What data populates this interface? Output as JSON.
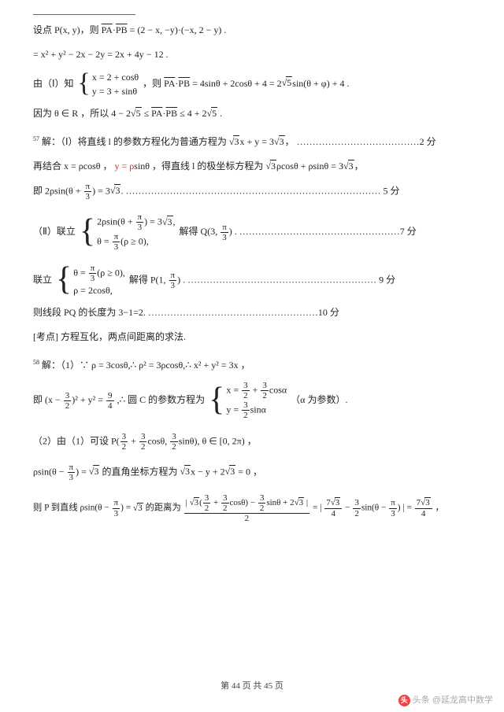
{
  "l1": "设点 P(x, y)，则 ",
  "l1b": " = (2 − x, −y)·(−x, 2 − y) .",
  "l2": "= x² + y² − 2x − 2y = 2x + 4y − 12 .",
  "l3a": "由（Ⅰ）知",
  "l3r1": "x = 2 + cosθ",
  "l3r2": "y = 3 + sinθ",
  "l3b": "，则 ",
  "l3c": " = 4sinθ + 2cosθ + 4 = 2",
  "l3d": "sin(θ + φ) + 4 .",
  "l4a": "因为 θ ∈ R ，所以 4 − 2",
  "l4b": " ≤ ",
  "l4c": " ≤ 4 + 2",
  "l4d": " .",
  "q57n": "57",
  "l5a": " 解：（Ⅰ）将直线 l 的参数方程化为普通方程为 ",
  "l5b": "x + y = 3",
  "l5c": "，",
  "l5dots": "…………………………………",
  "l5s": "2 分",
  "l6a": "再结合 x = ρcosθ ，",
  "l6red": "y = ρ",
  "l6b": "sinθ ，得直线 l 的极坐标方程为 ",
  "l6c": "ρcosθ + ρsinθ = 3",
  "l6d": "，",
  "l7a": "即 2ρsin(θ + ",
  "l7b": ") = 3",
  "l7c": ".",
  "l7dots": "………………………………………………………………………",
  "l7s": " 5 分",
  "l8a": "（Ⅱ）联立",
  "l8r1a": "2ρsin(θ + ",
  "l8r1b": ") = 3",
  "l8r1c": ",",
  "l8r2a": "θ = ",
  "l8r2b": "(ρ ≥ 0),",
  "l8b": "解得 Q(3, ",
  "l8c": ") .",
  "l8dots": "……………………………………………",
  "l8s": "7 分",
  "l9a": "联立",
  "l9r1a": "θ = ",
  "l9r1b": "(ρ ≥ 0),",
  "l9r2": "ρ = 2cosθ,",
  "l9b": "解得 P(1, ",
  "l9c": ") .",
  "l9dots": "……………………………………………………",
  "l9s": " 9 分",
  "l10a": "则线段 PQ 的长度为 3−1=2.",
  "l10dots": "………………………………………………",
  "l10s": "10 分",
  "l11": "[考点] 方程互化，两点间距离的求法.",
  "q58n": "58",
  "l12a": " 解：（1）∵ ρ = 3cosθ,∴ ρ² = 3ρcosθ,∴ x² + y² = 3x ，",
  "l13a": "即 (x − ",
  "l13b": ")² + y² = ",
  "l13c": " ,∴ 圆 C 的参数方程为",
  "l13r1a": "x = ",
  "l13r1b": " + ",
  "l13r1c": "cosα",
  "l13r2a": "y = ",
  "l13r2b": "sinα",
  "l13d": "（α 为参数）.",
  "l14a": "（2）由（1）可设 P(",
  "l14b": " + ",
  "l14c": "cosθ, ",
  "l14d": "sinθ), θ ∈ [0, 2π) ，",
  "l15a": "ρsin(θ − ",
  "l15b": ") = ",
  "l15c": " 的直角坐标方程为 ",
  "l15d": "x − y + 2",
  "l15e": " = 0 ，",
  "l16a": "则 P 到直线 ρsin(θ − ",
  "l16b": ") = ",
  "l16c": " 的距离为 ",
  "l16top1": "(",
  "l16top2": " + ",
  "l16top3": "cosθ) − ",
  "l16top4": "sinθ + 2",
  "l16den": "2",
  "l16d": " = | ",
  "l16e": " − ",
  "l16f": "sin(θ − ",
  "l16g": ") | = ",
  "l16h": " ，",
  "pi": "π",
  "three": "3",
  "two": "2",
  "nine": "9",
  "four": "4",
  "sev": "7",
  "footer": "第 44 页 共 45 页",
  "wm_text": "头条 @延龙高中数学",
  "sqrt3": "3",
  "sqrt5": "5"
}
